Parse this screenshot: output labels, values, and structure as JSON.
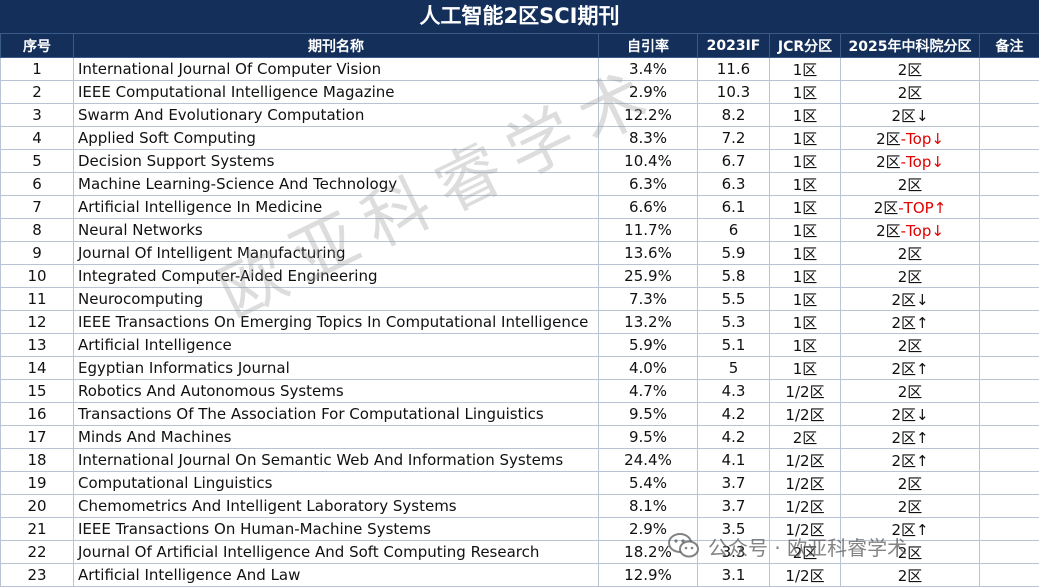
{
  "title": "人工智能2区SCI期刊",
  "headers": [
    "序号",
    "期刊名称",
    "自引率",
    "2023IF",
    "JCR分区",
    "2025年中科院分区",
    "备注"
  ],
  "rows": [
    {
      "no": "1",
      "name": "International Journal Of Computer Vision",
      "self_cite": "3.4%",
      "if": "11.6",
      "jcr": "1区",
      "cas": "2区",
      "cas_note": "",
      "remark": ""
    },
    {
      "no": "2",
      "name": "IEEE Computational Intelligence Magazine",
      "self_cite": "2.9%",
      "if": "10.3",
      "jcr": "1区",
      "cas": "2区",
      "cas_note": "",
      "remark": ""
    },
    {
      "no": "3",
      "name": "Swarm And Evolutionary Computation",
      "self_cite": "12.2%",
      "if": "8.2",
      "jcr": "1区",
      "cas": "2区↓",
      "cas_note": "",
      "remark": ""
    },
    {
      "no": "4",
      "name": "Applied Soft Computing",
      "self_cite": "8.3%",
      "if": "7.2",
      "jcr": "1区",
      "cas": "2区",
      "cas_note": "-Top↓",
      "remark": ""
    },
    {
      "no": "5",
      "name": "Decision Support Systems",
      "self_cite": "10.4%",
      "if": "6.7",
      "jcr": "1区",
      "cas": "2区",
      "cas_note": "-Top↓",
      "remark": ""
    },
    {
      "no": "6",
      "name": "Machine Learning-Science And Technology",
      "self_cite": "6.3%",
      "if": "6.3",
      "jcr": "1区",
      "cas": "2区",
      "cas_note": "",
      "remark": ""
    },
    {
      "no": "7",
      "name": "Artificial Intelligence In Medicine",
      "self_cite": "6.6%",
      "if": "6.1",
      "jcr": "1区",
      "cas": "2区",
      "cas_note": "-TOP↑",
      "remark": ""
    },
    {
      "no": "8",
      "name": "Neural Networks",
      "self_cite": "11.7%",
      "if": "6",
      "jcr": "1区",
      "cas": "2区",
      "cas_note": "-Top↓",
      "remark": ""
    },
    {
      "no": "9",
      "name": "Journal Of Intelligent Manufacturing",
      "self_cite": "13.6%",
      "if": "5.9",
      "jcr": "1区",
      "cas": "2区",
      "cas_note": "",
      "remark": ""
    },
    {
      "no": "10",
      "name": "Integrated Computer-Aided Engineering",
      "self_cite": "25.9%",
      "if": "5.8",
      "jcr": "1区",
      "cas": "2区",
      "cas_note": "",
      "remark": ""
    },
    {
      "no": "11",
      "name": "Neurocomputing",
      "self_cite": "7.3%",
      "if": "5.5",
      "jcr": "1区",
      "cas": "2区↓",
      "cas_note": "",
      "remark": ""
    },
    {
      "no": "12",
      "name": "IEEE Transactions On Emerging Topics In Computational Intelligence",
      "self_cite": "13.2%",
      "if": "5.3",
      "jcr": "1区",
      "cas": "2区↑",
      "cas_note": "",
      "remark": ""
    },
    {
      "no": "13",
      "name": "Artificial Intelligence",
      "self_cite": "5.9%",
      "if": "5.1",
      "jcr": "1区",
      "cas": "2区",
      "cas_note": "",
      "remark": ""
    },
    {
      "no": "14",
      "name": "Egyptian Informatics Journal",
      "self_cite": "4.0%",
      "if": "5",
      "jcr": "1区",
      "cas": "2区↑",
      "cas_note": "",
      "remark": ""
    },
    {
      "no": "15",
      "name": "Robotics And Autonomous Systems",
      "self_cite": "4.7%",
      "if": "4.3",
      "jcr": "1/2区",
      "cas": "2区",
      "cas_note": "",
      "remark": ""
    },
    {
      "no": "16",
      "name": "Transactions Of The Association For Computational Linguistics",
      "self_cite": "9.5%",
      "if": "4.2",
      "jcr": "1/2区",
      "cas": "2区↓",
      "cas_note": "",
      "remark": ""
    },
    {
      "no": "17",
      "name": "Minds And Machines",
      "self_cite": "9.5%",
      "if": "4.2",
      "jcr": "2区",
      "cas": "2区↑",
      "cas_note": "",
      "remark": ""
    },
    {
      "no": "18",
      "name": "International Journal On Semantic Web And Information Systems",
      "self_cite": "24.4%",
      "if": "4.1",
      "jcr": "1/2区",
      "cas": "2区↑",
      "cas_note": "",
      "remark": ""
    },
    {
      "no": "19",
      "name": "Computational Linguistics",
      "self_cite": "5.4%",
      "if": "3.7",
      "jcr": "1/2区",
      "cas": "2区",
      "cas_note": "",
      "remark": ""
    },
    {
      "no": "20",
      "name": "Chemometrics And Intelligent Laboratory Systems",
      "self_cite": "8.1%",
      "if": "3.7",
      "jcr": "1/2区",
      "cas": "2区",
      "cas_note": "",
      "remark": ""
    },
    {
      "no": "21",
      "name": "IEEE Transactions On Human-Machine Systems",
      "self_cite": "2.9%",
      "if": "3.5",
      "jcr": "1/2区",
      "cas": "2区↑",
      "cas_note": "",
      "remark": ""
    },
    {
      "no": "22",
      "name": "Journal Of Artificial Intelligence And Soft Computing Research",
      "self_cite": "18.2%",
      "if": "3.3",
      "jcr": "2区",
      "cas": "2区",
      "cas_note": "",
      "remark": ""
    },
    {
      "no": "23",
      "name": "Artificial Intelligence And Law",
      "self_cite": "12.9%",
      "if": "3.1",
      "jcr": "1/2区",
      "cas": "2区",
      "cas_note": "",
      "remark": ""
    }
  ],
  "watermark": "欧亚科睿学术",
  "wechat_tag": {
    "icon": "wechat-icon",
    "label": "公众号 · 欧亚科睿学术"
  },
  "colors": {
    "header_bg": "#14305a",
    "header_text": "#ffffff",
    "highlight": "#e00000"
  }
}
